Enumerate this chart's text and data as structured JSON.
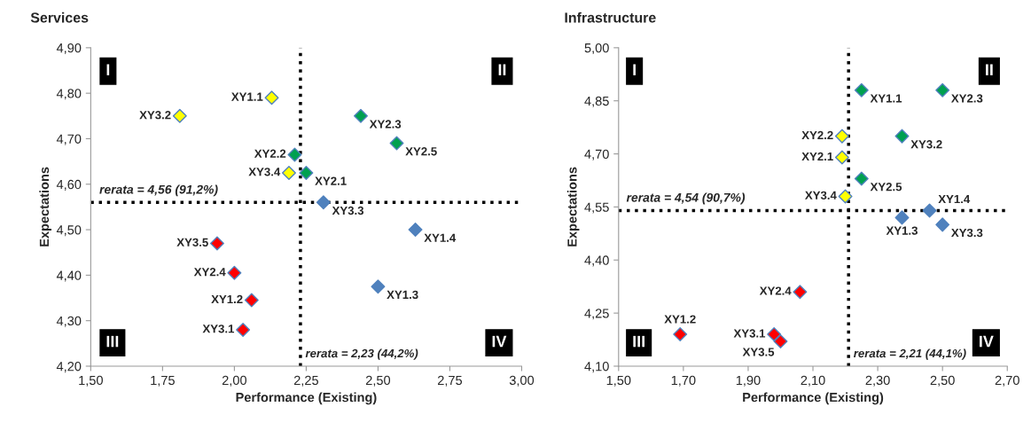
{
  "chart_data": [
    {
      "type": "scatter",
      "title": "Services",
      "xlabel": "Performance (Existing)",
      "ylabel": "Expectations",
      "xlim": [
        1.5,
        3.0
      ],
      "ylim": [
        4.2,
        4.9
      ],
      "xticks": [
        {
          "value": 1.5,
          "label": "1,50"
        },
        {
          "value": 1.75,
          "label": "1,75"
        },
        {
          "value": 2.0,
          "label": "2,00"
        },
        {
          "value": 2.25,
          "label": "2,25"
        },
        {
          "value": 2.5,
          "label": "2,50"
        },
        {
          "value": 2.75,
          "label": "2,75"
        },
        {
          "value": 3.0,
          "label": "3,00"
        }
      ],
      "yticks": [
        {
          "value": 4.2,
          "label": "4,20"
        },
        {
          "value": 4.3,
          "label": "4,30"
        },
        {
          "value": 4.4,
          "label": "4,40"
        },
        {
          "value": 4.5,
          "label": "4,50"
        },
        {
          "value": 4.6,
          "label": "4,60"
        },
        {
          "value": 4.7,
          "label": "4,70"
        },
        {
          "value": 4.8,
          "label": "4,80"
        },
        {
          "value": 4.9,
          "label": "4,90"
        }
      ],
      "marker": "diamond",
      "grid": false,
      "series": [
        {
          "color": "#ffff00",
          "x": [
            1.81,
            2.13,
            2.19
          ],
          "values": [
            4.75,
            4.79,
            4.625
          ]
        },
        {
          "color": "#00a050",
          "x": [
            2.21,
            2.25,
            2.44,
            2.565
          ],
          "values": [
            4.665,
            4.625,
            4.75,
            4.69
          ]
        },
        {
          "color": "#4f81bd",
          "x": [
            2.31,
            2.63,
            2.5
          ],
          "values": [
            4.56,
            4.5,
            4.375
          ]
        },
        {
          "color": "#ff0000",
          "x": [
            1.94,
            2.0,
            2.06,
            2.03
          ],
          "values": [
            4.47,
            4.405,
            4.345,
            4.28
          ]
        }
      ],
      "ref_lines": [
        {
          "axis": "y",
          "value": 4.56,
          "label": "rerata = 4,56 (91,2%)",
          "color": "#000000",
          "line_style": "dotted"
        },
        {
          "axis": "x",
          "value": 2.23,
          "label": "rerata = 2,23 (44,2%)",
          "color": "#000000",
          "line_style": "dotted"
        }
      ],
      "annotations": [
        "I",
        "II",
        "III",
        "IV",
        {
          "text": "XY3.2",
          "x": 1.81,
          "y": 4.75
        },
        {
          "text": "XY1.1",
          "x": 2.13,
          "y": 4.79
        },
        {
          "text": "XY3.4",
          "x": 2.19,
          "y": 4.625
        },
        {
          "text": "XY2.2",
          "x": 2.21,
          "y": 4.665
        },
        {
          "text": "XY2.1",
          "x": 2.25,
          "y": 4.625
        },
        {
          "text": "XY2.3",
          "x": 2.44,
          "y": 4.75
        },
        {
          "text": "XY2.5",
          "x": 2.565,
          "y": 4.69
        },
        {
          "text": "XY3.3",
          "x": 2.31,
          "y": 4.56
        },
        {
          "text": "XY1.4",
          "x": 2.63,
          "y": 4.5
        },
        {
          "text": "XY1.3",
          "x": 2.5,
          "y": 4.375
        },
        {
          "text": "XY3.5",
          "x": 1.94,
          "y": 4.47
        },
        {
          "text": "XY2.4",
          "x": 2.0,
          "y": 4.405
        },
        {
          "text": "XY1.2",
          "x": 2.06,
          "y": 4.345
        },
        {
          "text": "XY3.1",
          "x": 2.03,
          "y": 4.28
        }
      ]
    },
    {
      "type": "scatter",
      "title": "Infrastructure",
      "xlabel": "Performance (Existing)",
      "ylabel": "Expectations",
      "xlim": [
        1.5,
        2.7
      ],
      "ylim": [
        4.1,
        5.0
      ],
      "xticks": [
        {
          "value": 1.5,
          "label": "1,50"
        },
        {
          "value": 1.7,
          "label": "1,70"
        },
        {
          "value": 1.9,
          "label": "1,90"
        },
        {
          "value": 2.1,
          "label": "2,10"
        },
        {
          "value": 2.3,
          "label": "2,30"
        },
        {
          "value": 2.5,
          "label": "2,50"
        },
        {
          "value": 2.7,
          "label": "2,70"
        }
      ],
      "yticks": [
        {
          "value": 4.1,
          "label": "4,10"
        },
        {
          "value": 4.25,
          "label": "4,25"
        },
        {
          "value": 4.4,
          "label": "4,40"
        },
        {
          "value": 4.55,
          "label": "4,55"
        },
        {
          "value": 4.7,
          "label": "4,70"
        },
        {
          "value": 4.85,
          "label": "4,85"
        },
        {
          "value": 5.0,
          "label": "5,00"
        }
      ],
      "marker": "diamond",
      "grid": false,
      "series": [
        {
          "color": "#ffff00",
          "x": [
            2.19,
            2.19,
            2.2
          ],
          "values": [
            4.75,
            4.69,
            4.58
          ]
        },
        {
          "color": "#00a050",
          "x": [
            2.25,
            2.5,
            2.375,
            2.25
          ],
          "values": [
            4.88,
            4.88,
            4.75,
            4.63
          ]
        },
        {
          "color": "#4f81bd",
          "x": [
            2.46,
            2.375,
            2.5
          ],
          "values": [
            4.54,
            4.52,
            4.5
          ]
        },
        {
          "color": "#ff0000",
          "x": [
            1.69,
            1.98,
            2.0,
            2.06
          ],
          "values": [
            4.19,
            4.19,
            4.17,
            4.31
          ]
        }
      ],
      "ref_lines": [
        {
          "axis": "y",
          "value": 4.54,
          "label": "rerata = 4,54 (90,7%)",
          "color": "#000000",
          "line_style": "dotted"
        },
        {
          "axis": "x",
          "value": 2.21,
          "label": "rerata = 2,21 (44,1%)",
          "color": "#000000",
          "line_style": "dotted"
        }
      ],
      "annotations": [
        "I",
        "II",
        "III",
        "IV",
        {
          "text": "XY2.2",
          "x": 2.19,
          "y": 4.75
        },
        {
          "text": "XY2.1",
          "x": 2.19,
          "y": 4.69
        },
        {
          "text": "XY3.4",
          "x": 2.2,
          "y": 4.58
        },
        {
          "text": "XY1.1",
          "x": 2.25,
          "y": 4.88
        },
        {
          "text": "XY2.3",
          "x": 2.5,
          "y": 4.88
        },
        {
          "text": "XY3.2",
          "x": 2.375,
          "y": 4.75
        },
        {
          "text": "XY2.5",
          "x": 2.25,
          "y": 4.63
        },
        {
          "text": "XY1.4",
          "x": 2.46,
          "y": 4.54
        },
        {
          "text": "XY1.3",
          "x": 2.375,
          "y": 4.52
        },
        {
          "text": "XY3.3",
          "x": 2.5,
          "y": 4.5
        },
        {
          "text": "XY1.2",
          "x": 1.69,
          "y": 4.19
        },
        {
          "text": "XY3.1",
          "x": 1.98,
          "y": 4.19
        },
        {
          "text": "XY3.5",
          "x": 2.0,
          "y": 4.17
        },
        {
          "text": "XY2.4",
          "x": 2.06,
          "y": 4.31
        }
      ]
    }
  ]
}
